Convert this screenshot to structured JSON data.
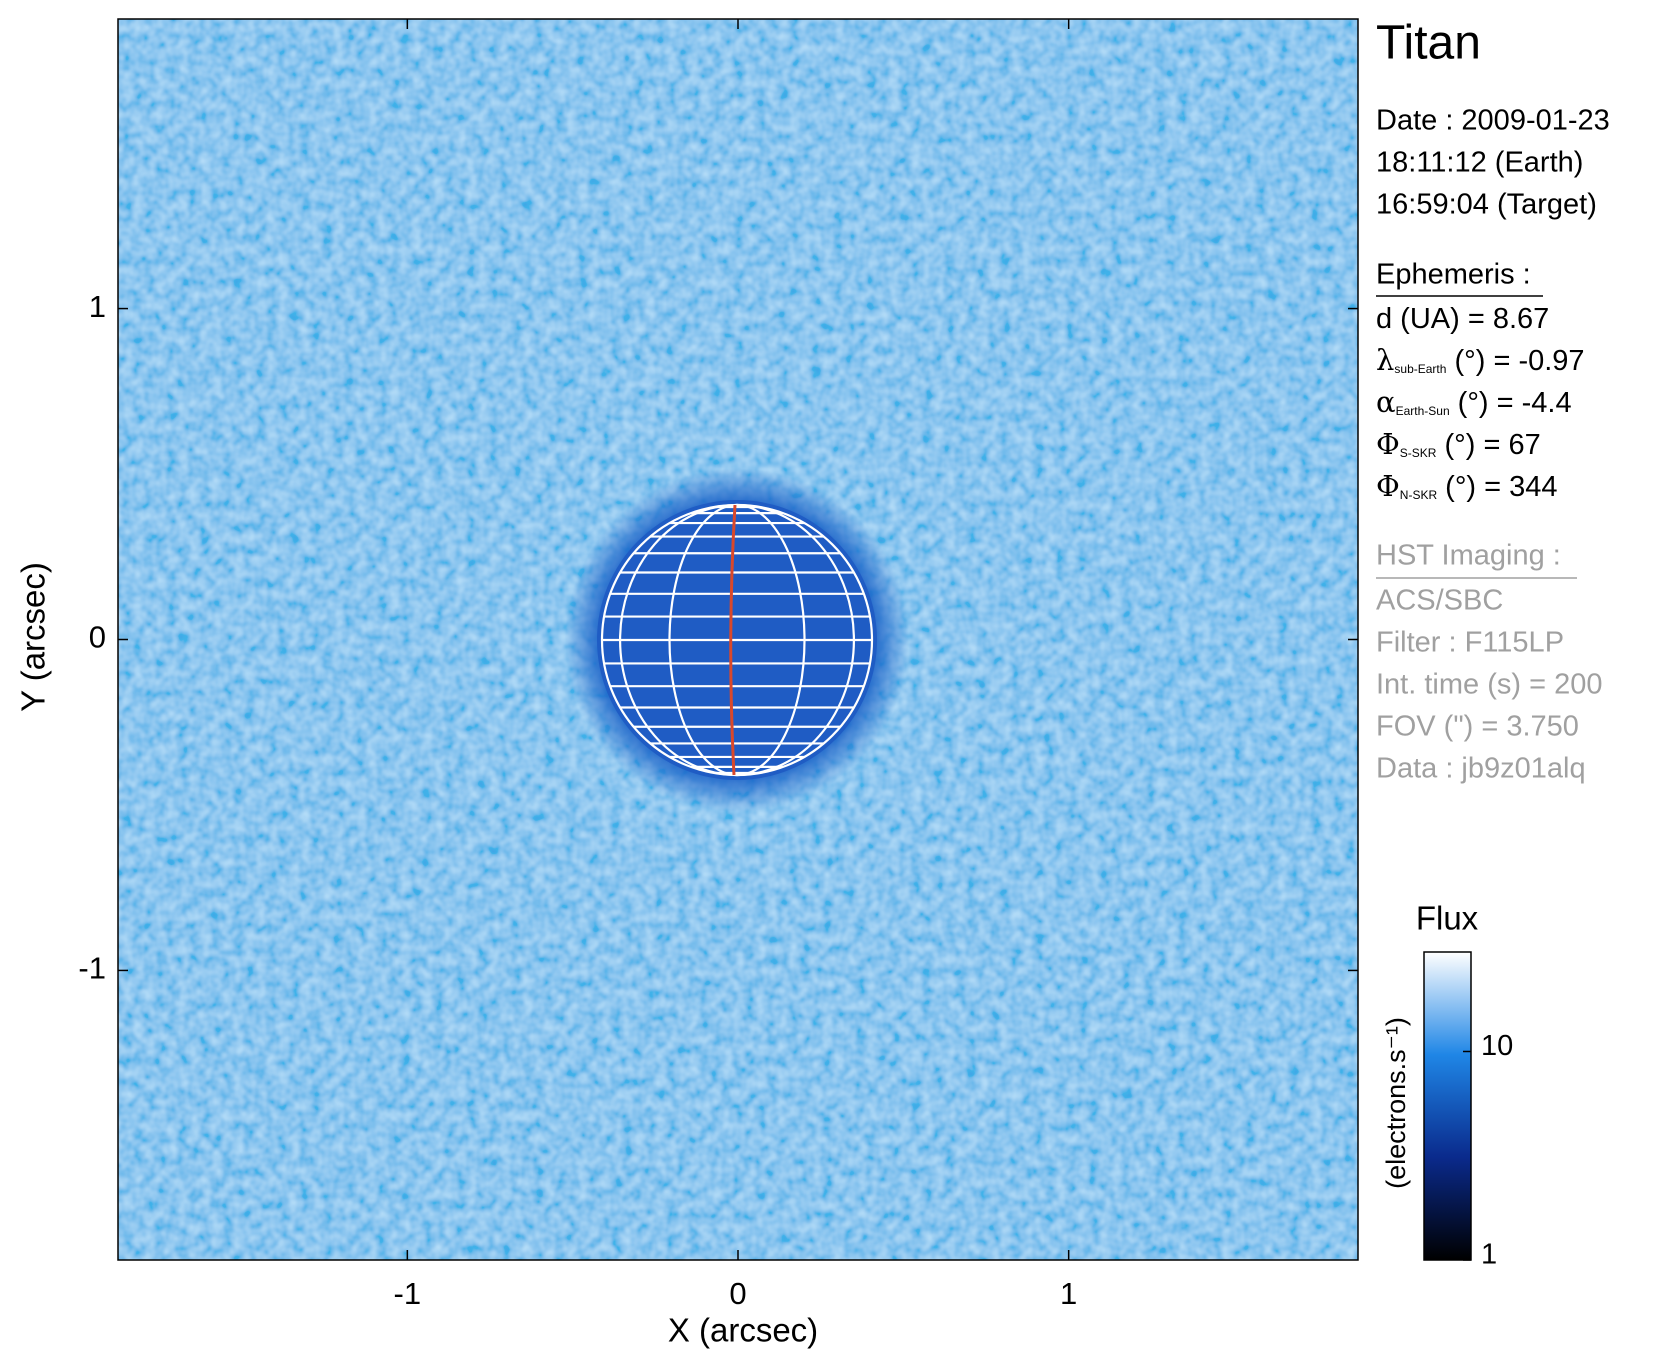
{
  "chart_data": {
    "type": "image",
    "xlabel": "X (arcsec)",
    "ylabel": "Y (arcsec)",
    "xlim": [
      -1.875,
      1.875
    ],
    "ylim": [
      -1.875,
      1.875
    ],
    "xticks": [
      -1,
      0,
      1
    ],
    "yticks": [
      -1,
      0,
      1
    ],
    "background_color": "#8ec3ee",
    "disk_color": "#1f5cc4",
    "grid_color": "#ffffff",
    "meridian_color": "#d9482b",
    "colorbar": {
      "title": "Flux",
      "label": "(electrons.s⁻¹)",
      "log": true,
      "ylim": [
        1,
        30
      ],
      "yticks": [
        1,
        10
      ],
      "colormap": [
        "#000000",
        "#0a2a8c",
        "#1f86e6",
        "#ffffff"
      ]
    }
  },
  "panel": {
    "title": "Titan",
    "date": [
      "Date : 2009-01-23",
      "18:11:12 (Earth)",
      "16:59:04 (Target)"
    ],
    "ephemeris_heading": "Ephemeris :",
    "ephemeris": [
      {
        "text": "d (UA)    = 8.67"
      },
      {
        "symbol": "λ",
        "sub": "sub-Earth",
        "text": " (°) = -0.97"
      },
      {
        "symbol": "α",
        "sub": "Earth-Sun",
        "text": " (°) = -4.4"
      },
      {
        "symbol": "Φ",
        "sub": "S-SKR",
        "text": " (°)   = 67"
      },
      {
        "symbol": "Φ",
        "sub": "N-SKR",
        "text": " (°)   = 344"
      }
    ],
    "imaging_heading": "HST Imaging :",
    "imaging": [
      "ACS/SBC",
      "Filter : F115LP",
      "Int. time (s) = 200",
      "FOV (\") = 3.750",
      "Data : jb9z01alq"
    ]
  }
}
